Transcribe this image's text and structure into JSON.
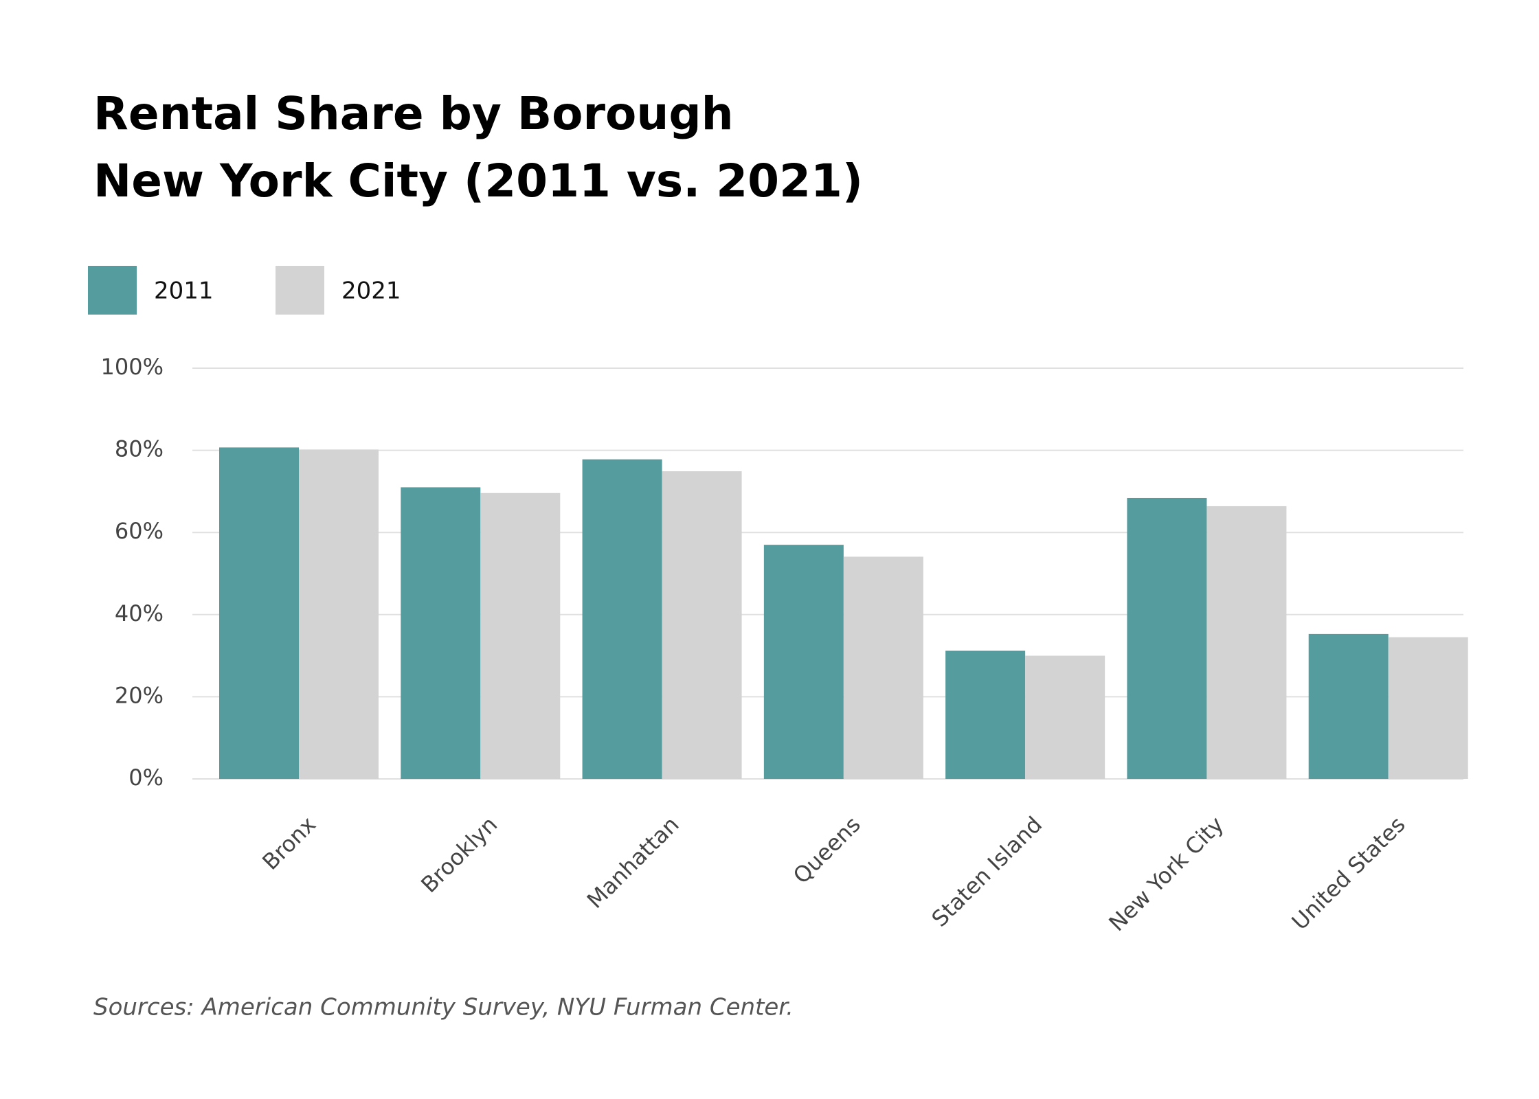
{
  "chart_data": {
    "type": "bar",
    "title": "Rental Share by Borough",
    "subtitle": "New York City (2011 vs. 2021)",
    "source": "Sources: American Community Survey, NYU Furman Center.",
    "categories": [
      "Bronx",
      "Brooklyn",
      "Manhattan",
      "Queens",
      "Staten Island",
      "New York City",
      "United States"
    ],
    "series": [
      {
        "name": "2011",
        "color": "#559c9e",
        "values": [
          80.7,
          71.0,
          77.8,
          57.0,
          31.2,
          68.4,
          35.3
        ]
      },
      {
        "name": "2021",
        "color": "#d3d3d3",
        "values": [
          80.2,
          69.6,
          74.9,
          54.1,
          30.0,
          66.4,
          34.5
        ]
      }
    ],
    "ylim": [
      0,
      100
    ],
    "yticks": [
      {
        "value": 0,
        "label": "0%"
      },
      {
        "value": 20,
        "label": "20%"
      },
      {
        "value": 40,
        "label": "40%"
      },
      {
        "value": 60,
        "label": "60%"
      },
      {
        "value": 80,
        "label": "80%"
      },
      {
        "value": 100,
        "label": "100%"
      }
    ],
    "grid": true
  }
}
